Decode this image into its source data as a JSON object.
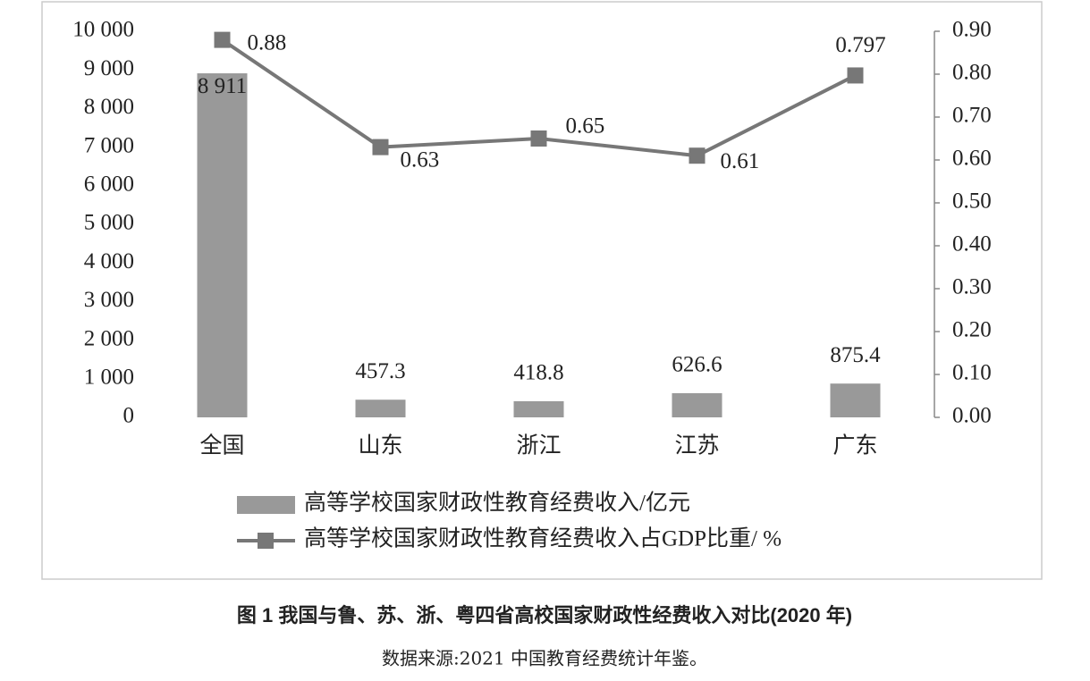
{
  "chart_data": {
    "type": "bar",
    "caption": "图 1  我国与鲁、苏、浙、粤四省高校国家财政性经费收入对比(2020 年)",
    "source": "数据来源:2021 中国教育经费统计年鉴。",
    "categories": [
      "全国",
      "山东",
      "浙江",
      "江苏",
      "广东"
    ],
    "series": [
      {
        "name": "高等学校国家财政性教育经费收入/亿元",
        "type": "bar",
        "color": "#999999",
        "values": [
          8911,
          457.3,
          418.8,
          626.6,
          875.4
        ],
        "value_labels": [
          "8 911",
          "457.3",
          "418.8",
          "626.6",
          "875.4"
        ]
      },
      {
        "name": "高等学校国家财政性教育经费收入占GDP比重/ %",
        "type": "line",
        "color": "#777777",
        "axis": "y2",
        "values": [
          0.88,
          0.63,
          0.65,
          0.61,
          0.797
        ]
      }
    ],
    "ylim": [
      0,
      10000
    ],
    "yticks": [
      0,
      {
        "value": 1000,
        "label": "1 000"
      },
      {
        "value": 2000,
        "label": "2 000"
      },
      {
        "value": 3000,
        "label": "3 000"
      },
      {
        "value": 4000,
        "label": "4 000"
      },
      {
        "value": 5000,
        "label": "5 000"
      },
      {
        "value": 6000,
        "label": "6 000"
      },
      {
        "value": 7000,
        "label": "7 000"
      },
      {
        "value": 8000,
        "label": "8 000"
      },
      {
        "value": 9000,
        "label": "9 000"
      },
      {
        "value": 10000,
        "label": "10 000"
      }
    ],
    "y2lim": [
      0,
      0.9
    ],
    "y2ticks": [
      {
        "value": 0,
        "label": "0.00"
      },
      {
        "value": 0.1,
        "label": "0.10"
      },
      {
        "value": 0.2,
        "label": "0.20"
      },
      {
        "value": 0.3,
        "label": "0.30"
      },
      {
        "value": 0.4,
        "label": "0.40"
      },
      {
        "value": 0.5,
        "label": "0.50"
      },
      {
        "value": 0.6,
        "label": "0.60"
      },
      {
        "value": 0.7,
        "label": "0.70"
      },
      {
        "value": 0.8,
        "label": "0.80"
      },
      {
        "value": 0.9,
        "label": "0.90"
      }
    ],
    "grid": false
  }
}
